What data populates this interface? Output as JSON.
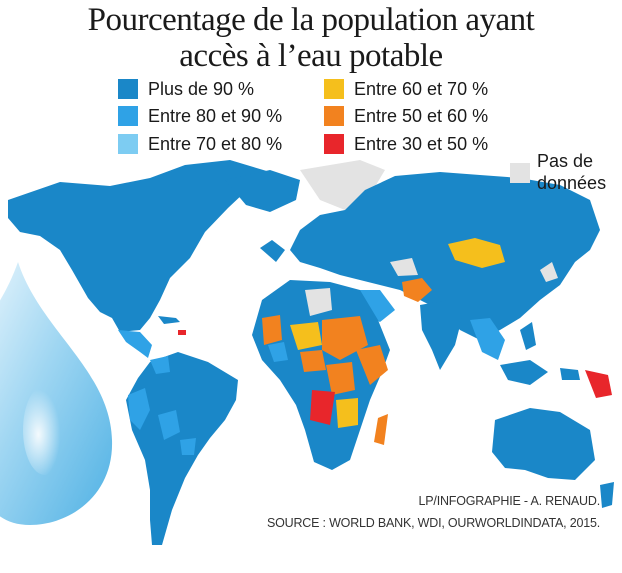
{
  "title": {
    "line1": "Pourcentage de la population ayant",
    "line2": "accès à l’eau potable"
  },
  "legend": [
    {
      "label": "Plus de 90 %",
      "color": "#1a87c8"
    },
    {
      "label": "Entre 80 et 90 %",
      "color": "#2fa2e6"
    },
    {
      "label": "Entre 70 et 80 %",
      "color": "#7dccf2"
    },
    {
      "label": "Entre 60 et 70 %",
      "color": "#f5bf1c"
    },
    {
      "label": "Entre 50 et 60 %",
      "color": "#f2821f"
    },
    {
      "label": "Entre 30 et 50 %",
      "color": "#e8262b"
    }
  ],
  "no_data": {
    "line1": "Pas de",
    "line2": "données",
    "color": "#e3e3e3"
  },
  "credits": {
    "line1": "LP/INFOGRAPHIE - A. RENAUD.",
    "line2": "SOURCE : WORLD BANK, WDI, OURWORLDINDATA, 2015."
  },
  "decoration": {
    "drop": "water-drop-icon"
  }
}
